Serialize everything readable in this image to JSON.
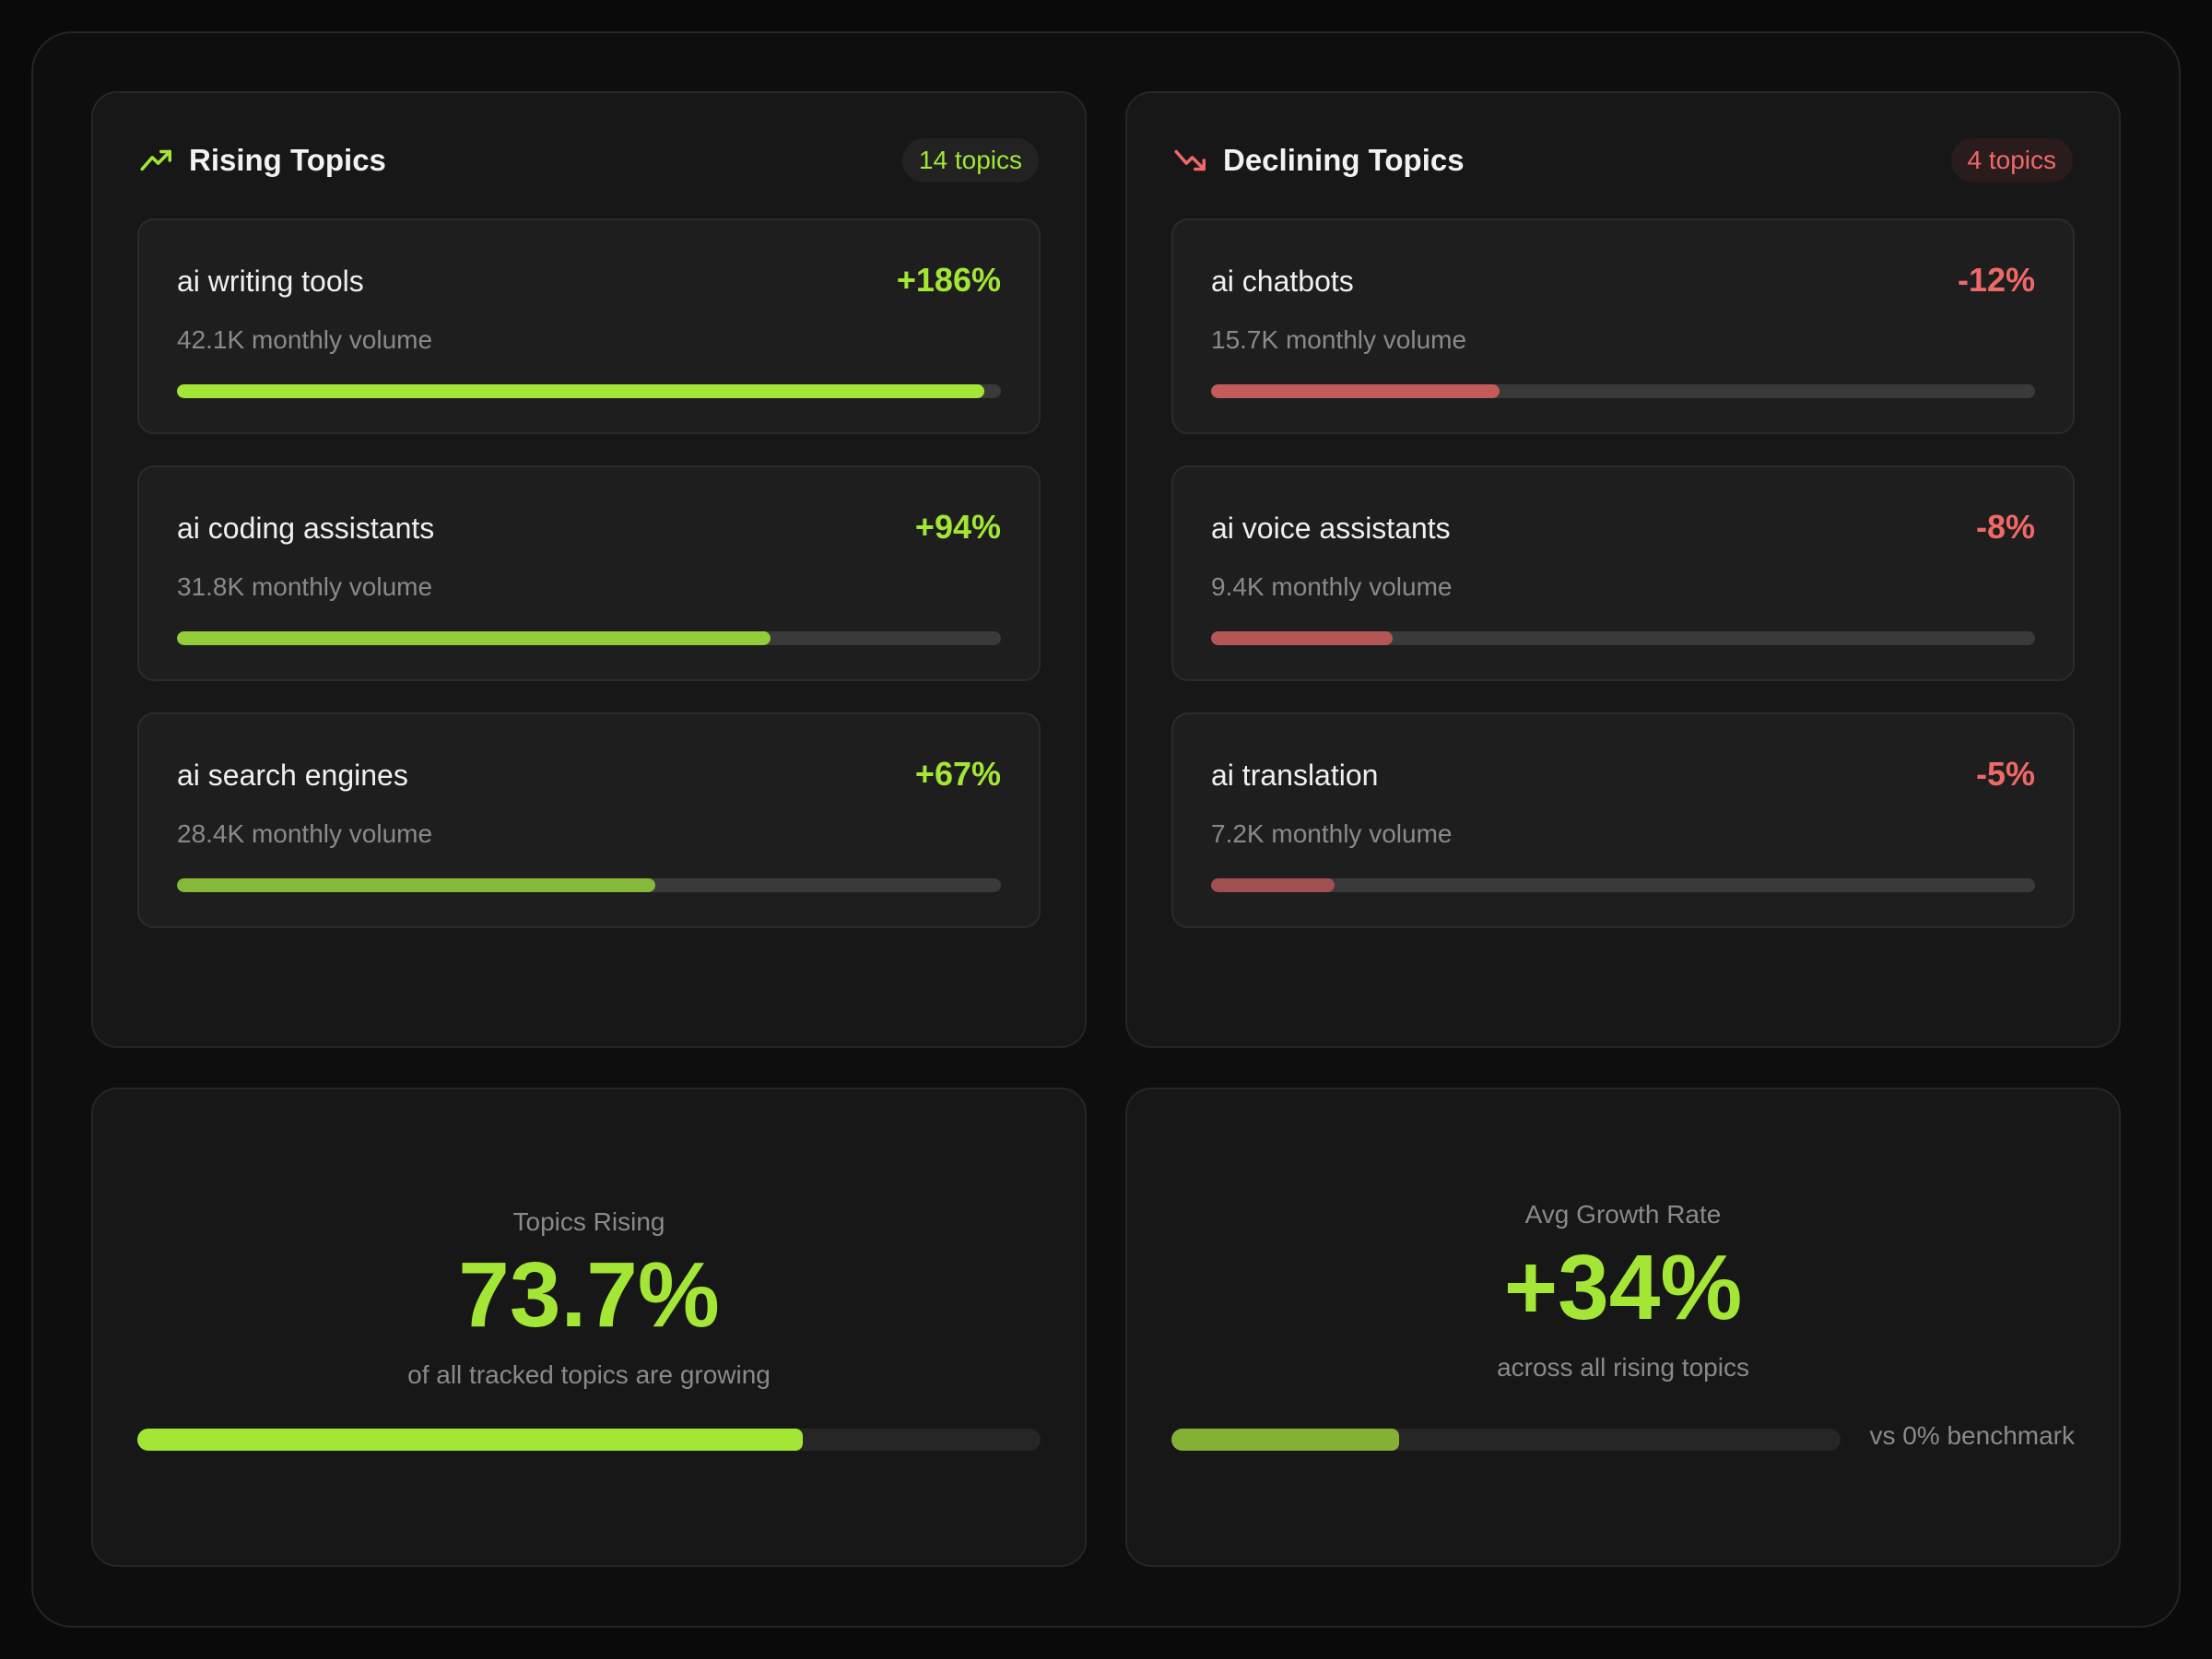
{
  "colors": {
    "rising": "#a3e635",
    "declining": "#f06868"
  },
  "rising": {
    "title": "Rising Topics",
    "icon": "trending-up-icon",
    "badge": "14 topics",
    "items": [
      {
        "name": "ai writing tools",
        "change": "+186%",
        "volume": "42.1K monthly volume",
        "fill_pct": 98,
        "bar_color": "#a3e635"
      },
      {
        "name": "ai coding assistants",
        "change": "+94%",
        "volume": "31.8K monthly volume",
        "fill_pct": 72,
        "bar_color": "#93cd3a"
      },
      {
        "name": "ai search engines",
        "change": "+67%",
        "volume": "28.4K monthly volume",
        "fill_pct": 58,
        "bar_color": "#86b83a"
      }
    ]
  },
  "declining": {
    "title": "Declining Topics",
    "icon": "trending-down-icon",
    "badge": "4 topics",
    "items": [
      {
        "name": "ai chatbots",
        "change": "-12%",
        "volume": "15.7K monthly volume",
        "fill_pct": 35,
        "bar_color": "#c45a5a"
      },
      {
        "name": "ai voice assistants",
        "change": "-8%",
        "volume": "9.4K monthly volume",
        "fill_pct": 22,
        "bar_color": "#b45656"
      },
      {
        "name": "ai translation",
        "change": "-5%",
        "volume": "7.2K monthly volume",
        "fill_pct": 15,
        "bar_color": "#a05050"
      }
    ]
  },
  "stats": {
    "topics_rising": {
      "label": "Topics Rising",
      "value": "73.7%",
      "sub": "of all tracked topics are growing",
      "fill_pct": 73.7
    },
    "avg_growth": {
      "label": "Avg Growth Rate",
      "value": "+34%",
      "sub": "across all rising topics",
      "fill_pct": 34,
      "benchmark": "vs 0% benchmark"
    }
  }
}
